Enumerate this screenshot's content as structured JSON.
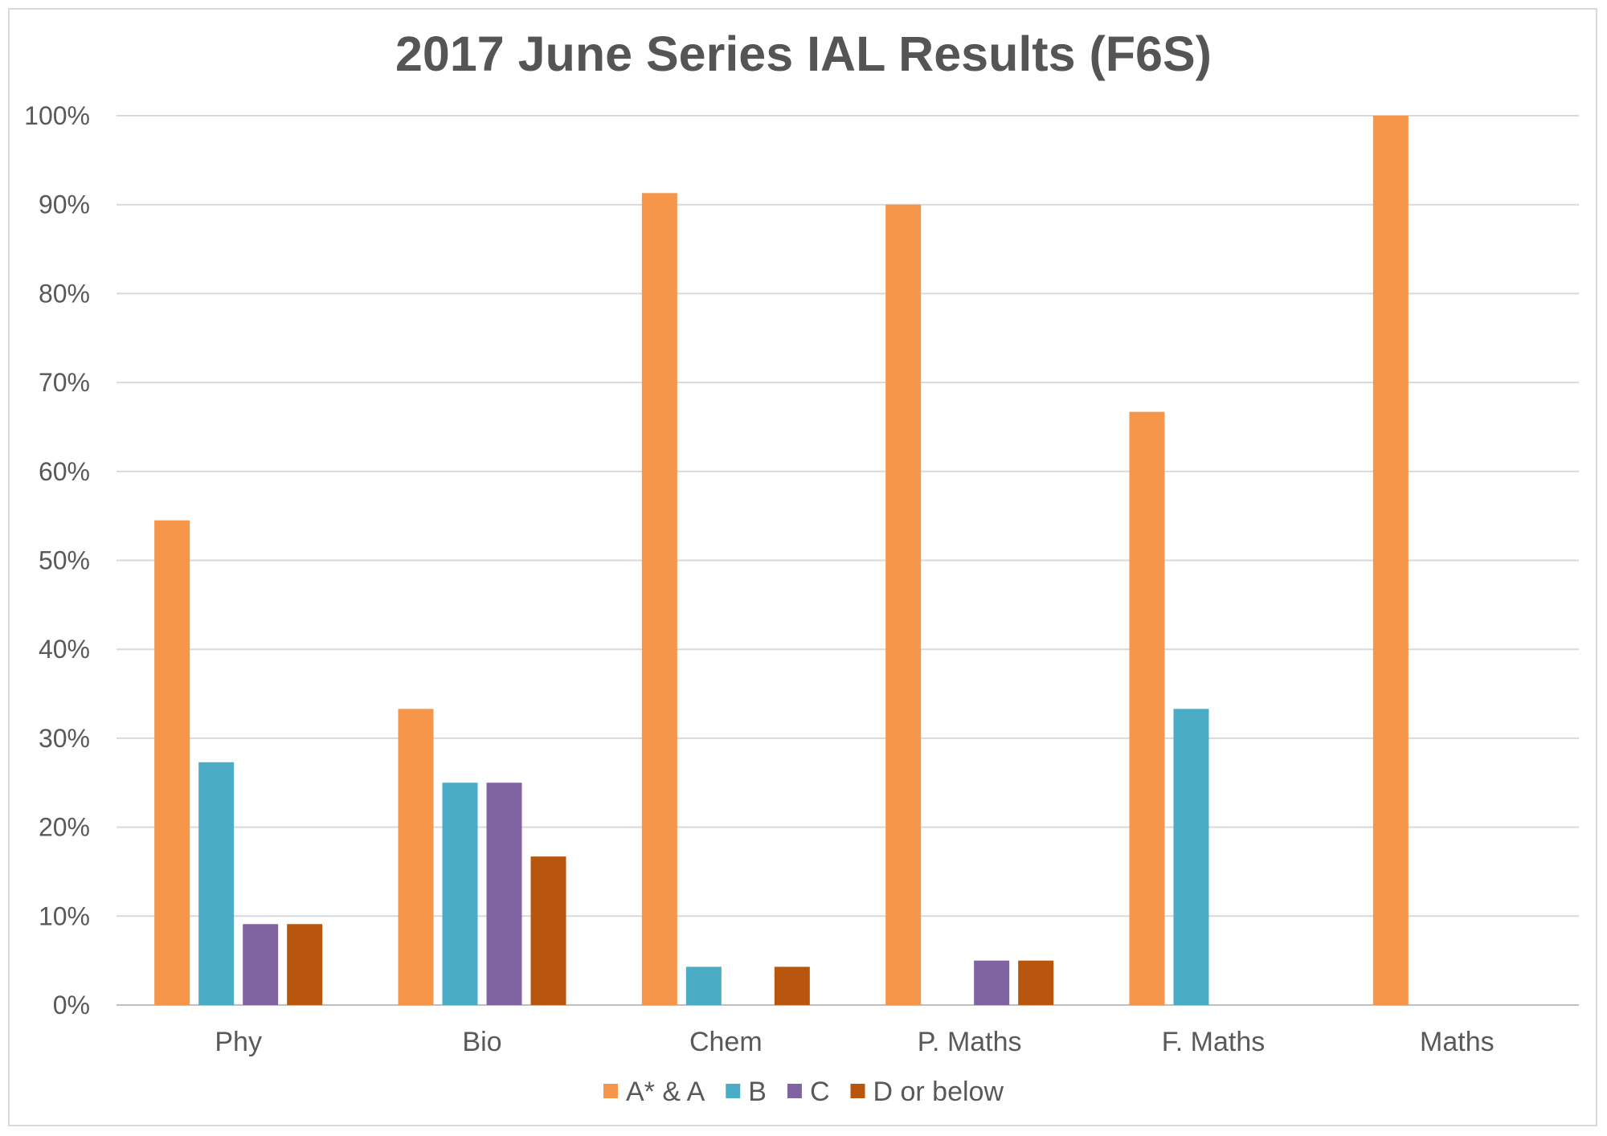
{
  "chart_data": {
    "type": "bar",
    "title": "2017 June Series IAL Results (F6S)",
    "xlabel": "",
    "ylabel": "",
    "ylim": [
      0,
      100
    ],
    "y_ticks": [
      "0%",
      "10%",
      "20%",
      "30%",
      "40%",
      "50%",
      "60%",
      "70%",
      "80%",
      "90%",
      "100%"
    ],
    "categories": [
      "Phy",
      "Bio",
      "Chem",
      "P. Maths",
      "F. Maths",
      "Maths"
    ],
    "series": [
      {
        "name": "A* & A",
        "color": "#F5964A",
        "values": [
          54.5,
          33.3,
          91.3,
          90.0,
          66.7,
          100.0
        ]
      },
      {
        "name": "B",
        "color": "#4BACC6",
        "values": [
          27.3,
          25.0,
          4.3,
          0,
          33.3,
          0
        ]
      },
      {
        "name": "C",
        "color": "#8064A2",
        "values": [
          9.1,
          25.0,
          0,
          5.0,
          0,
          0
        ]
      },
      {
        "name": "D or below",
        "color": "#B8560E",
        "values": [
          9.1,
          16.7,
          4.3,
          5.0,
          0,
          0
        ]
      }
    ],
    "grid": true,
    "legend_position": "bottom"
  }
}
